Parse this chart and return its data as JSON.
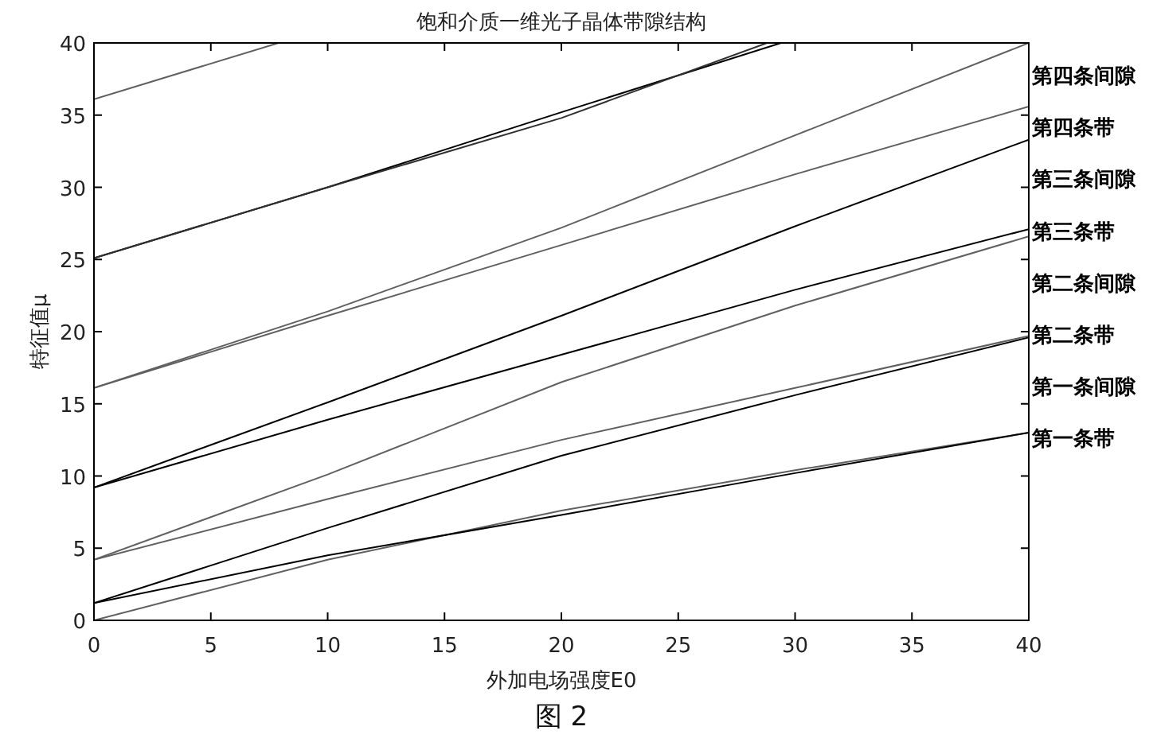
{
  "chart_data": {
    "type": "line",
    "title": "饱和介质一维光子晶体带隙结构",
    "xlabel": "外加电场强度E0",
    "ylabel": "特征值μ",
    "xlim": [
      0,
      40
    ],
    "ylim": [
      0,
      40
    ],
    "xticks": [
      0,
      5,
      10,
      15,
      20,
      25,
      30,
      35,
      40
    ],
    "yticks": [
      0,
      5,
      10,
      15,
      20,
      25,
      30,
      35,
      40
    ],
    "grid": false,
    "marker": "none",
    "line_style": "solid",
    "series": [
      {
        "color": "#606060",
        "x": [
          0,
          10,
          20,
          30,
          40
        ],
        "values": [
          0,
          4.2,
          7.6,
          10.4,
          13
        ]
      },
      {
        "color": "#000000",
        "x": [
          0,
          10,
          20,
          30,
          40
        ],
        "values": [
          1.2,
          4.5,
          7.3,
          10.2,
          13
        ]
      },
      {
        "color": "#000000",
        "x": [
          0,
          10,
          20,
          30,
          40
        ],
        "values": [
          1.2,
          6.4,
          11.4,
          15.6,
          19.6
        ]
      },
      {
        "color": "#606060",
        "x": [
          0,
          10,
          20,
          30,
          40
        ],
        "values": [
          4.2,
          8.4,
          12.5,
          16.1,
          19.7
        ]
      },
      {
        "color": "#606060",
        "x": [
          0,
          10,
          20,
          30,
          40
        ],
        "values": [
          4.2,
          10.1,
          16.5,
          21.8,
          26.6
        ]
      },
      {
        "color": "#000000",
        "x": [
          0,
          10,
          20,
          30,
          40
        ],
        "values": [
          9.2,
          13.9,
          18.4,
          22.9,
          27.1
        ]
      },
      {
        "color": "#000000",
        "x": [
          0,
          10,
          20,
          30,
          40
        ],
        "values": [
          9.2,
          15.1,
          21.1,
          27.3,
          33.3
        ]
      },
      {
        "color": "#606060",
        "x": [
          0,
          10,
          20,
          30,
          40
        ],
        "values": [
          16.1,
          21.1,
          26.0,
          30.9,
          35.6
        ]
      },
      {
        "color": "#606060",
        "x": [
          0,
          10,
          20,
          30,
          40
        ],
        "values": [
          16.1,
          21.4,
          27.2,
          33.6,
          40
        ]
      },
      {
        "color": "#000000",
        "x": [
          0,
          10,
          20,
          29.4
        ],
        "values": [
          25.1,
          30.0,
          35.2,
          40
        ]
      },
      {
        "color": "#303030",
        "x": [
          0,
          10,
          20,
          28.8
        ],
        "values": [
          25.1,
          30.0,
          34.8,
          40
        ]
      },
      {
        "color": "#606060",
        "x": [
          0,
          7.9
        ],
        "values": [
          36.1,
          40
        ]
      }
    ],
    "annotations": [
      "第四条间隙",
      "第四条带",
      "第三条间隙",
      "第三条带",
      "第二条间隙",
      "第二条带",
      "第一条间隙",
      "第一条带",
      "图 2"
    ]
  }
}
